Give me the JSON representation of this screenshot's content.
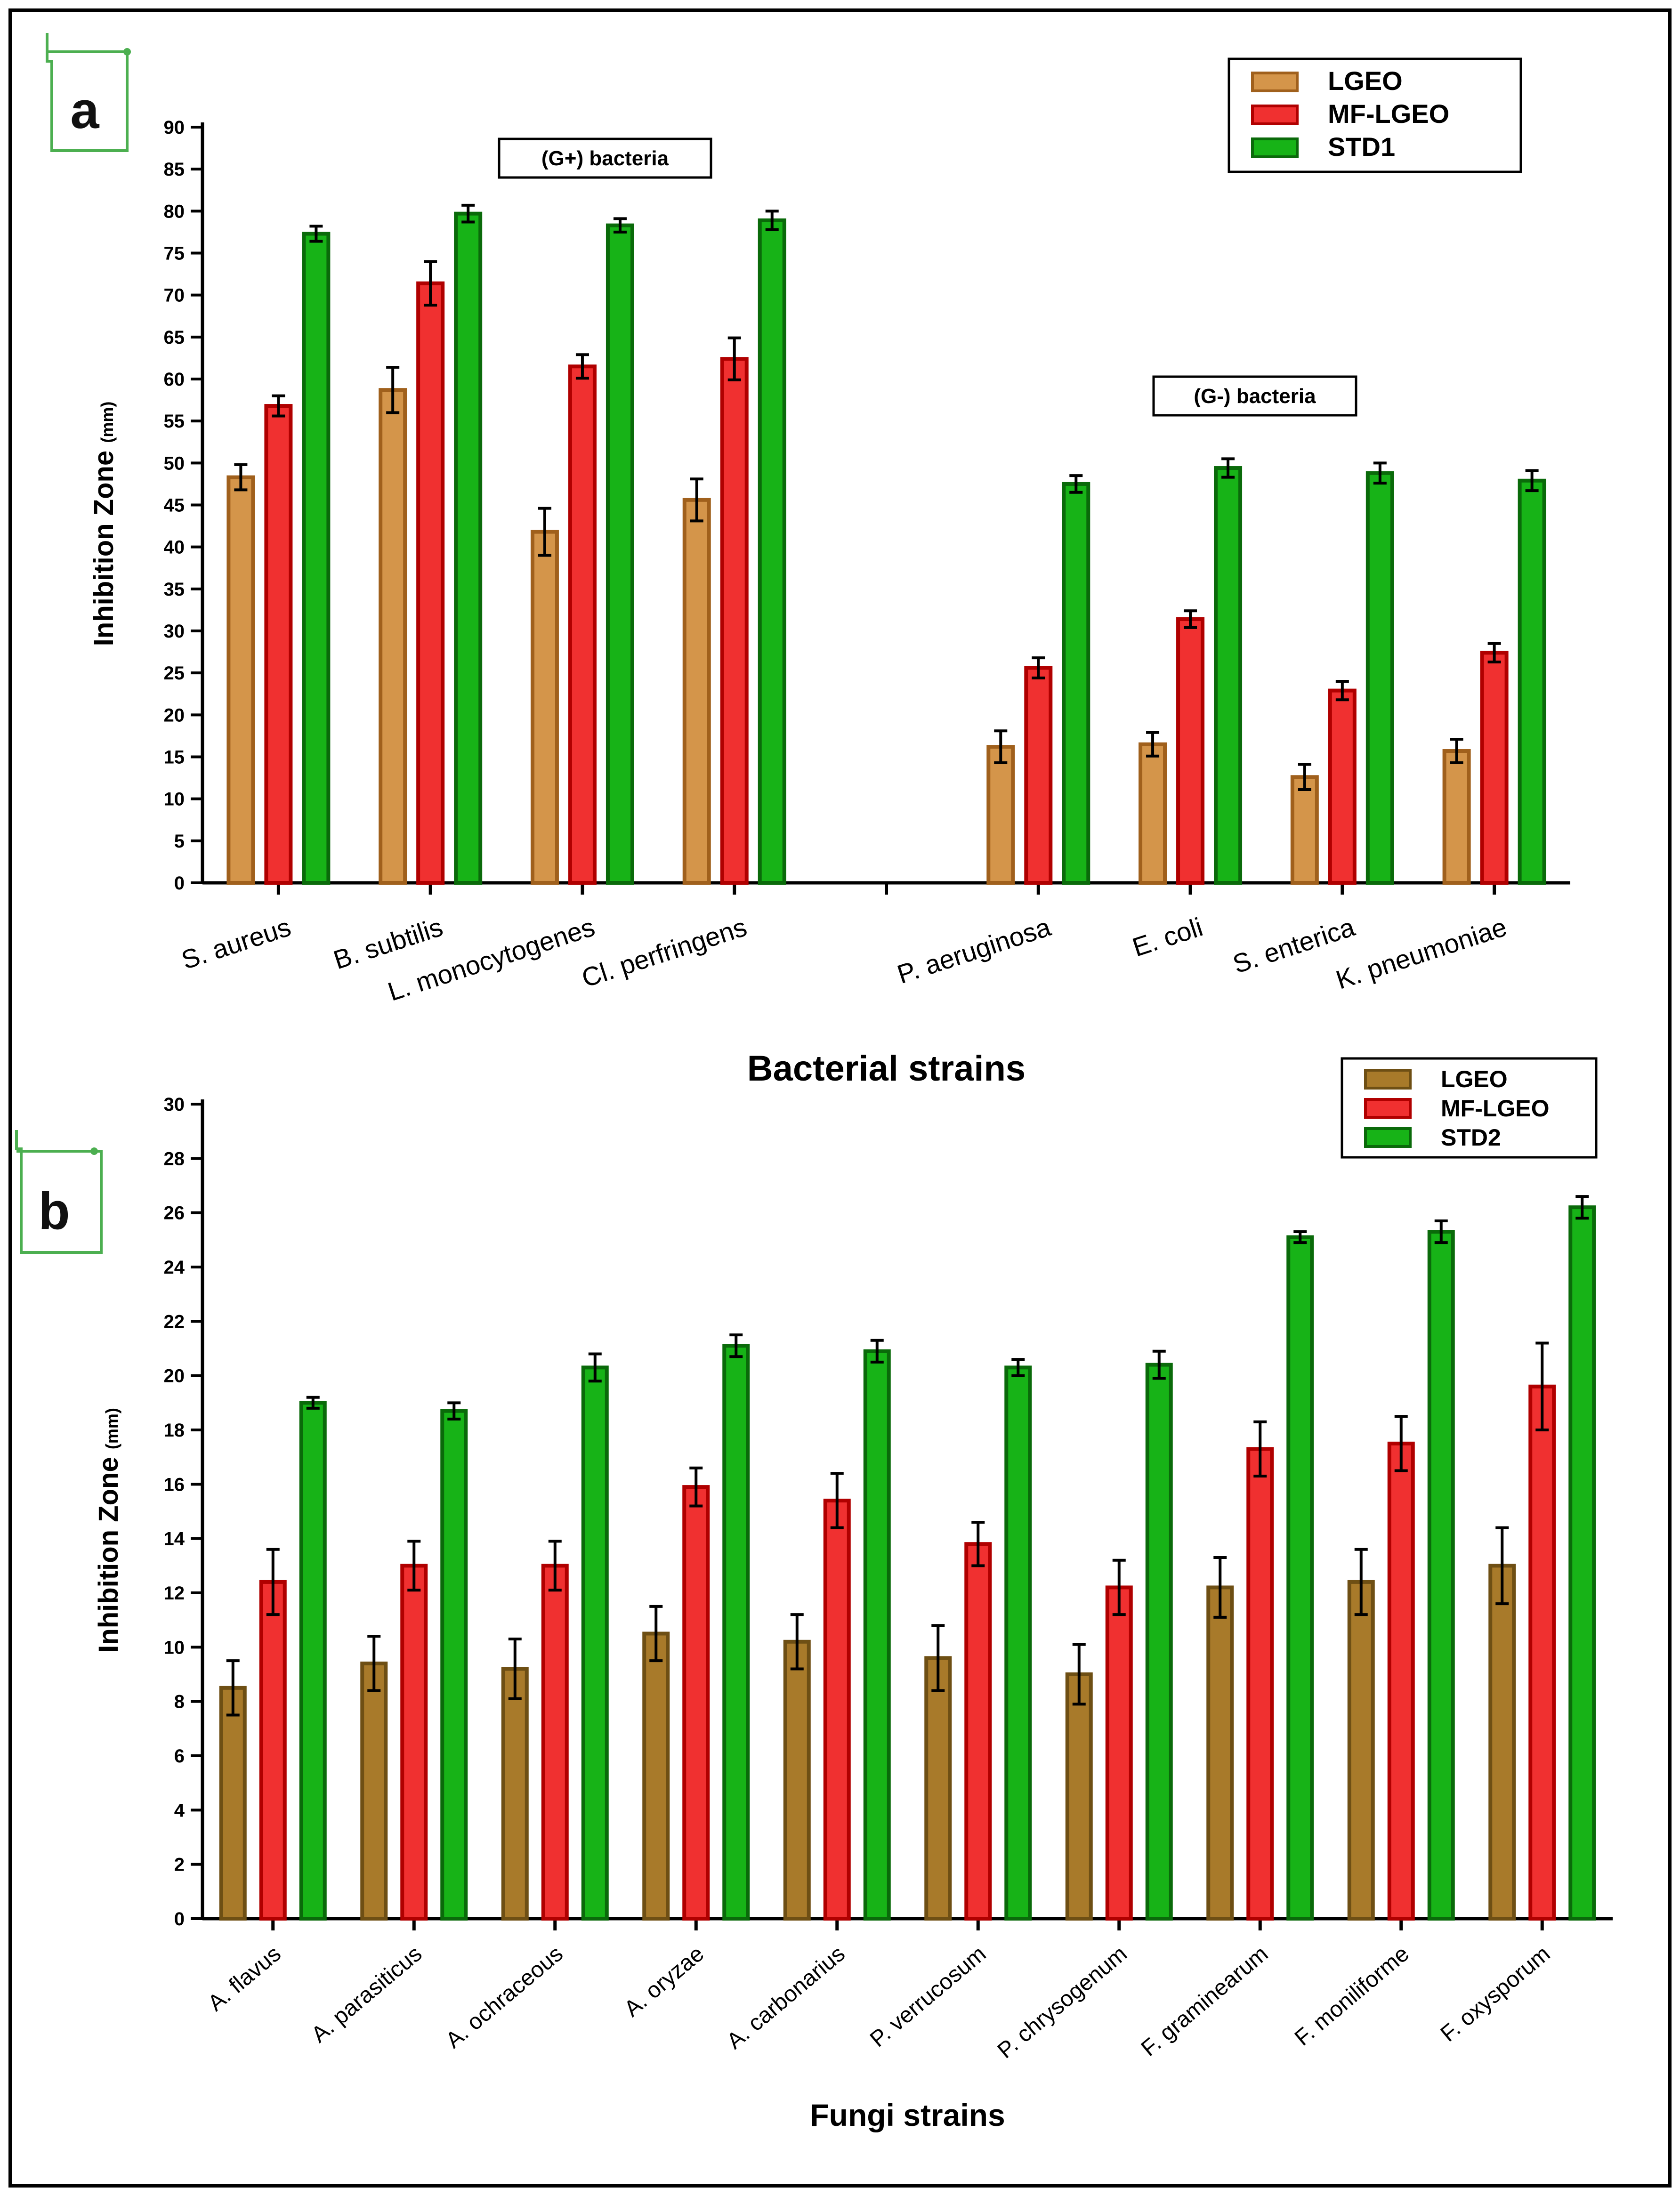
{
  "figure": {
    "panel_a_label": "a",
    "panel_b_label": "b"
  },
  "colors": {
    "LGEO_a": "#d4954a",
    "LGEO_b": "#a87a2a",
    "MF-LGEO": "#f03030",
    "STD": "#17b317",
    "bar_stroke_LGEO_a": "#a0601c",
    "bar_stroke_LGEO_b": "#6e4f14",
    "bar_stroke_MF": "#b00000",
    "bar_stroke_STD": "#0a6a0a",
    "marker_green": "#4caf50"
  },
  "chart_data": [
    {
      "type": "bar",
      "panel": "a",
      "title": "",
      "xlabel": "Bacterial strains",
      "ylabel": "Inhibition Zone",
      "ylabel_unit": "(mm)",
      "ylim": [
        0,
        90
      ],
      "ytick_step": 5,
      "groups": [
        {
          "label": "(G+) bacteria",
          "categories": [
            "S. aureus",
            "B. subtilis",
            "L. monocytogenes",
            "Cl. perfringens"
          ]
        },
        {
          "label": "(G-) bacteria",
          "categories": [
            "P. aeruginosa",
            "E. coli",
            "S. enterica",
            "K. pneumoniae"
          ]
        }
      ],
      "categories": [
        "S. aureus",
        "B. subtilis",
        "L. monocytogenes",
        "Cl. perfringens",
        "",
        "P. aeruginosa",
        "E. coli",
        "S. enterica",
        "K. pneumoniae"
      ],
      "series": [
        {
          "name": "LGEO",
          "values": [
            48.3,
            58.7,
            41.8,
            45.6,
            null,
            16.2,
            16.5,
            12.6,
            15.7
          ],
          "errors": [
            1.5,
            2.7,
            2.8,
            2.5,
            null,
            1.9,
            1.4,
            1.5,
            1.4
          ]
        },
        {
          "name": "MF-LGEO",
          "values": [
            56.8,
            71.4,
            61.5,
            62.4,
            null,
            25.6,
            31.4,
            22.9,
            27.4
          ],
          "errors": [
            1.2,
            2.6,
            1.4,
            2.5,
            null,
            1.2,
            1.0,
            1.1,
            1.1
          ]
        },
        {
          "name": "STD1",
          "values": [
            77.3,
            79.7,
            78.3,
            78.9,
            null,
            47.5,
            49.4,
            48.8,
            47.9
          ],
          "errors": [
            0.9,
            1.0,
            0.8,
            1.1,
            null,
            1.0,
            1.1,
            1.2,
            1.2
          ]
        }
      ],
      "legend": [
        "LGEO",
        "MF-LGEO",
        "STD1"
      ],
      "legend_position": "top-right"
    },
    {
      "type": "bar",
      "panel": "b",
      "title": "",
      "xlabel": "Fungi strains",
      "ylabel": "Inhibition Zone",
      "ylabel_unit": "(mm)",
      "ylim": [
        0,
        30
      ],
      "ytick_step": 2,
      "categories": [
        "A. flavus",
        "A. parasiticus",
        "A. ochraceous",
        "A. oryzae",
        "A. carbonarius",
        "P. verrucosum",
        "P. chrysogenum",
        "F. graminearum",
        "F. moniliforme",
        "F. oxysporum"
      ],
      "series": [
        {
          "name": "LGEO",
          "values": [
            8.5,
            9.4,
            9.2,
            10.5,
            10.2,
            9.6,
            9.0,
            12.2,
            12.4,
            13.0
          ],
          "errors": [
            1.0,
            1.0,
            1.1,
            1.0,
            1.0,
            1.2,
            1.1,
            1.1,
            1.2,
            1.4
          ]
        },
        {
          "name": "MF-LGEO",
          "values": [
            12.4,
            13.0,
            13.0,
            15.9,
            15.4,
            13.8,
            12.2,
            17.3,
            17.5,
            19.6
          ],
          "errors": [
            1.2,
            0.9,
            0.9,
            0.7,
            1.0,
            0.8,
            1.0,
            1.0,
            1.0,
            1.6
          ]
        },
        {
          "name": "STD2",
          "values": [
            19.0,
            18.7,
            20.3,
            21.1,
            20.9,
            20.3,
            20.4,
            25.1,
            25.3,
            26.2
          ],
          "errors": [
            0.2,
            0.3,
            0.5,
            0.4,
            0.4,
            0.3,
            0.5,
            0.2,
            0.4,
            0.4
          ]
        }
      ],
      "legend": [
        "LGEO",
        "MF-LGEO",
        "STD2"
      ],
      "legend_position": "top-right"
    }
  ]
}
